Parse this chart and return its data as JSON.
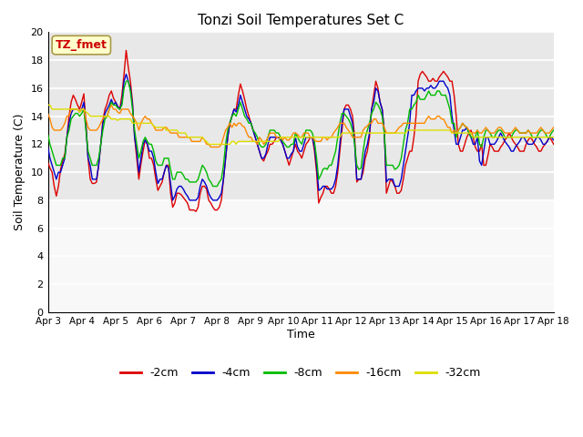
{
  "title": "Tonzi Soil Temperatures Set C",
  "xlabel": "Time",
  "ylabel": "Soil Temperature (C)",
  "annotation": "TZ_fmet",
  "annotation_color": "#cc0000",
  "annotation_bg": "#ffffcc",
  "annotation_border": "#aa9944",
  "ylim": [
    0,
    20
  ],
  "yticks": [
    0,
    2,
    4,
    6,
    8,
    10,
    12,
    14,
    16,
    18,
    20
  ],
  "xtick_labels": [
    "Apr 3",
    "Apr 4",
    "Apr 5",
    "Apr 6",
    "Apr 7",
    "Apr 8",
    "Apr 9",
    "Apr 10",
    "Apr 11",
    "Apr 12",
    "Apr 13",
    "Apr 14",
    "Apr 15",
    "Apr 16",
    "Apr 17",
    "Apr 18"
  ],
  "plot_bg_color": "#e8e8e8",
  "lower_bg_color": "#f8f8f8",
  "grid_color": "#ffffff",
  "series_colors": [
    "#dd0000",
    "#0000cc",
    "#00bb00",
    "#ff8800",
    "#dddd00"
  ],
  "series_labels": [
    "-2cm",
    "-4cm",
    "-8cm",
    "-16cm",
    "-32cm"
  ],
  "n_points": 240,
  "cm2": [
    10.7,
    10.3,
    10.0,
    9.0,
    8.3,
    9.0,
    10.2,
    10.8,
    11.3,
    12.5,
    14.0,
    15.0,
    15.5,
    15.2,
    14.8,
    14.5,
    15.0,
    15.6,
    13.5,
    11.0,
    9.5,
    9.2,
    9.2,
    9.3,
    10.5,
    12.0,
    13.7,
    14.5,
    14.9,
    15.5,
    15.8,
    15.3,
    15.0,
    14.7,
    14.5,
    15.5,
    17.0,
    18.7,
    17.5,
    16.5,
    15.0,
    12.5,
    11.0,
    9.5,
    10.6,
    11.5,
    12.3,
    12.0,
    11.0,
    11.0,
    10.5,
    9.5,
    8.7,
    9.0,
    9.3,
    10.0,
    10.5,
    10.5,
    8.5,
    7.5,
    7.8,
    8.5,
    8.5,
    8.4,
    8.2,
    8.0,
    7.8,
    7.3,
    7.3,
    7.3,
    7.2,
    7.5,
    8.5,
    9.0,
    9.0,
    8.8,
    8.0,
    7.8,
    7.5,
    7.3,
    7.3,
    7.5,
    8.0,
    9.5,
    11.0,
    12.5,
    13.5,
    14.0,
    14.5,
    14.5,
    15.5,
    16.3,
    15.8,
    15.2,
    14.5,
    14.0,
    13.5,
    13.0,
    12.5,
    12.0,
    11.5,
    11.0,
    10.8,
    11.2,
    11.5,
    12.0,
    12.0,
    12.2,
    12.5,
    12.5,
    12.3,
    12.0,
    11.5,
    11.0,
    10.5,
    11.0,
    11.5,
    12.0,
    11.5,
    11.3,
    11.0,
    11.5,
    12.0,
    12.2,
    12.5,
    12.5,
    11.5,
    10.0,
    7.8,
    8.2,
    8.5,
    9.0,
    9.0,
    8.8,
    8.5,
    8.5,
    9.0,
    10.0,
    11.5,
    13.0,
    14.5,
    14.8,
    14.8,
    14.5,
    14.0,
    12.5,
    9.3,
    9.5,
    9.5,
    10.0,
    11.0,
    11.5,
    12.5,
    14.5,
    15.5,
    16.5,
    16.0,
    15.0,
    14.5,
    13.0,
    8.5,
    9.0,
    9.5,
    9.3,
    9.0,
    8.5,
    8.5,
    8.7,
    9.5,
    10.5,
    11.0,
    11.5,
    11.5,
    12.5,
    14.0,
    16.5,
    17.0,
    17.2,
    17.0,
    16.8,
    16.5,
    16.5,
    16.7,
    16.5,
    16.5,
    16.8,
    17.0,
    17.2,
    17.0,
    16.8,
    16.5,
    16.5,
    15.5,
    14.0,
    12.0,
    11.5,
    11.5,
    12.0,
    12.5,
    12.8,
    13.0,
    12.5,
    11.8,
    11.5,
    11.5,
    12.0,
    10.5,
    10.5,
    11.2,
    12.0,
    11.8,
    11.5,
    11.5,
    11.5,
    11.8,
    12.0,
    12.3,
    12.5,
    12.8,
    12.5,
    12.2,
    12.0,
    11.8,
    11.5,
    11.5,
    11.5,
    12.0,
    12.3,
    12.5,
    12.3,
    12.0,
    11.8,
    11.5,
    11.5,
    11.8,
    12.0,
    12.2,
    12.5,
    12.3,
    12.0,
    11.8,
    11.5,
    12.0,
    12.3,
    12.5,
    12.3,
    12.2,
    12.0,
    12.0,
    12.2,
    12.5,
    12.5,
    12.3,
    12.0,
    11.8,
    11.5,
    11.5,
    11.8,
    12.0,
    12.3,
    12.5,
    12.3,
    12.0,
    11.8,
    11.8,
    12.0
  ],
  "cm4": [
    11.8,
    11.0,
    10.5,
    10.0,
    9.5,
    10.0,
    10.0,
    10.5,
    11.0,
    12.5,
    13.5,
    14.2,
    14.5,
    14.5,
    14.5,
    14.3,
    14.5,
    15.0,
    13.2,
    11.0,
    10.5,
    9.5,
    9.5,
    9.5,
    10.5,
    12.0,
    13.5,
    14.2,
    14.5,
    14.8,
    15.2,
    14.8,
    15.0,
    14.7,
    14.5,
    15.0,
    16.5,
    17.0,
    16.5,
    16.0,
    14.8,
    12.5,
    11.5,
    10.0,
    11.0,
    12.0,
    12.3,
    12.0,
    11.5,
    11.5,
    11.0,
    10.0,
    9.2,
    9.5,
    9.5,
    10.0,
    10.5,
    10.3,
    9.2,
    8.0,
    8.3,
    8.8,
    9.0,
    9.0,
    8.8,
    8.5,
    8.3,
    8.0,
    8.0,
    8.0,
    8.0,
    8.2,
    9.0,
    9.5,
    9.3,
    9.0,
    8.5,
    8.2,
    8.0,
    8.0,
    8.0,
    8.2,
    8.5,
    9.5,
    11.0,
    12.5,
    13.5,
    14.0,
    14.5,
    14.3,
    14.8,
    15.5,
    15.0,
    14.5,
    14.0,
    13.8,
    13.5,
    13.0,
    12.5,
    12.0,
    11.5,
    11.0,
    11.0,
    11.3,
    12.0,
    12.5,
    12.5,
    12.5,
    12.5,
    12.5,
    12.3,
    12.0,
    11.5,
    11.0,
    11.0,
    11.3,
    11.5,
    12.5,
    11.8,
    11.5,
    11.5,
    12.0,
    12.5,
    12.5,
    12.5,
    12.5,
    11.8,
    10.5,
    8.7,
    8.8,
    9.0,
    9.0,
    8.8,
    8.8,
    8.8,
    9.0,
    9.5,
    10.5,
    12.0,
    13.5,
    14.5,
    14.5,
    14.5,
    14.0,
    13.5,
    12.0,
    9.5,
    9.5,
    9.5,
    10.5,
    11.5,
    12.0,
    12.8,
    14.5,
    15.0,
    16.0,
    15.8,
    15.0,
    14.5,
    12.8,
    9.3,
    9.5,
    9.5,
    9.5,
    9.0,
    9.0,
    9.0,
    9.5,
    10.5,
    11.5,
    12.5,
    13.5,
    15.5,
    15.5,
    15.8,
    16.0,
    16.0,
    16.0,
    15.8,
    16.0,
    16.0,
    16.2,
    16.0,
    16.0,
    16.2,
    16.5,
    16.5,
    16.5,
    16.2,
    16.0,
    15.5,
    14.0,
    13.0,
    12.0,
    12.0,
    12.5,
    13.0,
    13.0,
    13.2,
    12.8,
    12.5,
    12.0,
    12.0,
    12.5,
    10.8,
    10.5,
    11.5,
    12.5,
    12.5,
    12.0,
    12.0,
    12.0,
    12.2,
    12.5,
    12.8,
    12.5,
    12.2,
    12.0,
    11.8,
    11.5,
    11.5,
    11.8,
    12.0,
    12.2,
    12.5,
    12.5,
    12.2,
    12.0,
    12.0,
    12.0,
    12.2,
    12.5,
    12.5,
    12.3,
    12.0,
    12.0,
    12.2,
    12.5,
    12.5,
    12.3,
    12.0,
    12.0,
    12.2,
    12.5,
    12.5,
    12.3,
    12.2,
    12.0,
    12.2,
    12.5,
    12.5,
    12.3,
    12.2,
    12.0,
    12.0,
    12.2,
    12.0,
    12.2,
    12.5,
    12.5,
    12.3,
    12.0,
    12.0,
    12.2,
    12.2,
    12.5
  ],
  "cm8": [
    12.7,
    12.0,
    11.5,
    11.0,
    10.5,
    10.5,
    10.5,
    11.0,
    11.0,
    12.5,
    13.0,
    13.8,
    14.0,
    14.2,
    14.2,
    14.0,
    14.2,
    14.5,
    13.0,
    11.5,
    11.0,
    10.5,
    10.5,
    10.5,
    11.0,
    12.0,
    13.0,
    13.8,
    14.0,
    14.5,
    15.0,
    14.8,
    14.8,
    14.6,
    14.5,
    14.8,
    16.0,
    16.5,
    16.5,
    15.8,
    14.5,
    13.0,
    12.0,
    11.0,
    11.5,
    12.2,
    12.5,
    12.2,
    12.0,
    12.0,
    11.5,
    10.8,
    10.5,
    10.5,
    10.5,
    11.0,
    11.0,
    11.0,
    10.2,
    9.5,
    9.5,
    10.0,
    10.0,
    10.0,
    9.8,
    9.5,
    9.5,
    9.3,
    9.3,
    9.3,
    9.3,
    9.5,
    10.0,
    10.5,
    10.3,
    10.0,
    9.5,
    9.3,
    9.0,
    9.0,
    9.0,
    9.3,
    9.5,
    10.5,
    12.0,
    13.0,
    13.5,
    14.0,
    14.2,
    14.0,
    14.5,
    15.0,
    14.5,
    14.0,
    13.8,
    13.5,
    13.5,
    13.0,
    12.8,
    12.5,
    12.0,
    11.8,
    11.8,
    12.0,
    12.5,
    13.0,
    13.0,
    13.0,
    12.8,
    12.8,
    12.5,
    12.2,
    12.0,
    11.8,
    11.8,
    12.0,
    12.0,
    12.8,
    12.5,
    12.2,
    12.0,
    12.5,
    13.0,
    13.0,
    13.0,
    12.8,
    12.2,
    11.0,
    9.5,
    9.8,
    10.2,
    10.3,
    10.2,
    10.5,
    10.5,
    11.0,
    11.5,
    12.5,
    13.5,
    14.2,
    14.2,
    14.0,
    13.8,
    13.5,
    13.0,
    12.0,
    10.5,
    10.2,
    10.3,
    11.5,
    12.5,
    13.0,
    13.5,
    14.2,
    14.5,
    15.0,
    14.8,
    14.5,
    14.0,
    12.8,
    10.5,
    10.5,
    10.5,
    10.5,
    10.2,
    10.3,
    10.5,
    11.0,
    12.0,
    13.0,
    13.5,
    14.5,
    14.5,
    14.8,
    15.0,
    15.5,
    15.2,
    15.2,
    15.2,
    15.5,
    15.8,
    15.5,
    15.5,
    15.5,
    15.8,
    15.8,
    15.5,
    15.5,
    15.5,
    15.0,
    14.5,
    13.5,
    13.5,
    12.5,
    13.0,
    13.2,
    13.5,
    13.3,
    13.2,
    12.8,
    12.5,
    12.5,
    12.5,
    13.0,
    12.0,
    11.8,
    12.5,
    13.0,
    13.0,
    12.8,
    12.5,
    12.5,
    12.8,
    13.0,
    13.0,
    12.8,
    12.5,
    12.5,
    12.5,
    12.5,
    12.8,
    13.0,
    13.0,
    12.8,
    12.8,
    12.8,
    12.8,
    13.0,
    12.8,
    12.5,
    12.5,
    12.5,
    12.8,
    13.0,
    13.0,
    12.8,
    12.5,
    12.5,
    12.8,
    13.0,
    12.8,
    12.5,
    12.8,
    13.0,
    12.8,
    12.5,
    12.5,
    12.5,
    12.8,
    13.0,
    12.8,
    12.5,
    12.5,
    12.5,
    12.5,
    12.8,
    12.5,
    12.8,
    13.0,
    12.8,
    12.5,
    12.5,
    12.5,
    12.8,
    12.8,
    13.0
  ],
  "cm16": [
    14.2,
    13.8,
    13.2,
    13.0,
    13.0,
    13.0,
    13.0,
    13.2,
    13.5,
    14.0,
    14.0,
    14.5,
    14.5,
    14.5,
    14.5,
    14.3,
    14.5,
    14.5,
    13.8,
    13.2,
    13.0,
    13.0,
    13.0,
    13.0,
    13.2,
    13.5,
    13.8,
    14.0,
    14.0,
    14.5,
    14.8,
    14.5,
    14.5,
    14.3,
    14.2,
    14.5,
    14.5,
    14.5,
    14.5,
    14.2,
    14.0,
    13.8,
    13.5,
    13.0,
    13.5,
    13.8,
    14.0,
    13.8,
    13.8,
    13.5,
    13.3,
    13.0,
    13.0,
    13.0,
    13.0,
    13.2,
    13.2,
    13.0,
    12.8,
    12.8,
    12.8,
    12.8,
    12.5,
    12.5,
    12.5,
    12.5,
    12.5,
    12.5,
    12.2,
    12.2,
    12.2,
    12.2,
    12.2,
    12.5,
    12.3,
    12.0,
    12.0,
    11.8,
    11.8,
    11.8,
    11.8,
    11.8,
    12.0,
    12.5,
    13.0,
    13.2,
    13.5,
    13.2,
    13.5,
    13.3,
    13.5,
    13.5,
    13.3,
    13.2,
    12.8,
    12.5,
    12.5,
    12.2,
    12.2,
    12.0,
    12.5,
    12.3,
    12.0,
    12.2,
    12.5,
    12.8,
    12.8,
    12.8,
    12.5,
    12.5,
    12.5,
    12.3,
    12.5,
    12.3,
    12.3,
    12.5,
    12.8,
    12.8,
    12.7,
    12.5,
    12.5,
    12.8,
    12.8,
    12.8,
    12.5,
    12.5,
    12.3,
    12.2,
    12.2,
    12.2,
    12.5,
    12.5,
    12.3,
    12.5,
    12.5,
    12.8,
    13.0,
    13.2,
    13.5,
    13.5,
    13.5,
    13.2,
    13.0,
    12.8,
    12.5,
    12.5,
    12.5,
    12.5,
    12.5,
    13.0,
    13.2,
    13.3,
    13.5,
    13.5,
    13.8,
    13.8,
    13.5,
    13.5,
    13.5,
    13.2,
    12.8,
    12.8,
    12.8,
    12.8,
    12.8,
    13.0,
    13.2,
    13.3,
    13.5,
    13.5,
    13.5,
    13.5,
    13.5,
    13.5,
    13.5,
    13.5,
    13.5,
    13.5,
    13.5,
    13.8,
    14.0,
    13.8,
    13.8,
    13.8,
    14.0,
    14.0,
    13.8,
    13.8,
    13.5,
    13.2,
    13.2,
    12.8,
    13.0,
    12.8,
    13.0,
    13.2,
    13.5,
    13.3,
    13.2,
    13.0,
    12.8,
    12.8,
    12.8,
    13.0,
    12.8,
    12.8,
    13.0,
    13.2,
    13.0,
    12.8,
    12.8,
    12.8,
    13.0,
    13.2,
    13.2,
    13.0,
    12.8,
    12.8,
    12.8,
    12.8,
    13.0,
    13.2,
    13.0,
    12.8,
    12.8,
    12.8,
    12.8,
    13.0,
    12.8,
    12.8,
    12.8,
    12.8,
    13.0,
    13.2,
    13.0,
    12.8,
    12.8,
    12.8,
    13.0,
    13.2,
    13.0,
    12.8,
    12.8,
    13.0,
    13.2,
    13.0,
    12.8,
    12.8,
    13.0,
    13.2,
    13.0,
    12.8,
    12.8,
    12.8,
    12.8,
    13.0,
    12.8,
    12.8,
    13.0,
    13.0,
    12.8,
    12.8,
    12.8,
    12.8,
    12.8,
    13.0
  ],
  "cm32": [
    14.8,
    14.8,
    14.5,
    14.5,
    14.5,
    14.5,
    14.5,
    14.5,
    14.5,
    14.5,
    14.5,
    14.5,
    14.5,
    14.5,
    14.5,
    14.3,
    14.5,
    14.5,
    14.3,
    14.2,
    14.0,
    14.0,
    14.0,
    14.0,
    14.0,
    14.0,
    14.0,
    14.0,
    14.0,
    14.0,
    13.8,
    13.8,
    13.8,
    13.7,
    13.8,
    13.8,
    13.8,
    13.8,
    13.8,
    13.8,
    13.5,
    13.5,
    13.5,
    13.5,
    13.5,
    13.5,
    13.5,
    13.5,
    13.5,
    13.5,
    13.3,
    13.2,
    13.2,
    13.2,
    13.2,
    13.2,
    13.0,
    13.0,
    13.0,
    13.0,
    13.0,
    13.0,
    12.8,
    12.8,
    12.8,
    12.8,
    12.5,
    12.5,
    12.5,
    12.5,
    12.5,
    12.5,
    12.5,
    12.5,
    12.3,
    12.2,
    12.0,
    12.0,
    12.0,
    12.0,
    12.0,
    12.0,
    12.0,
    12.0,
    12.0,
    12.0,
    12.0,
    12.2,
    12.2,
    12.0,
    12.2,
    12.2,
    12.2,
    12.2,
    12.2,
    12.2,
    12.2,
    12.2,
    12.2,
    12.2,
    12.2,
    12.2,
    12.2,
    12.2,
    12.2,
    12.2,
    12.2,
    12.2,
    12.2,
    12.2,
    12.5,
    12.5,
    12.5,
    12.5,
    12.5,
    12.5,
    12.5,
    12.5,
    12.5,
    12.5,
    12.5,
    12.5,
    12.5,
    12.5,
    12.5,
    12.5,
    12.5,
    12.5,
    12.5,
    12.5,
    12.5,
    12.5,
    12.5,
    12.5,
    12.5,
    12.5,
    12.5,
    12.5,
    12.5,
    12.8,
    12.8,
    12.8,
    12.8,
    12.8,
    12.8,
    12.8,
    12.8,
    12.8,
    12.8,
    12.8,
    12.8,
    12.8,
    12.8,
    12.8,
    12.8,
    12.8,
    12.8,
    12.8,
    12.8,
    12.8,
    12.8,
    12.8,
    12.8,
    12.8,
    12.8,
    12.8,
    12.8,
    12.8,
    12.8,
    12.8,
    13.0,
    13.0,
    13.0,
    13.0,
    13.0,
    13.0,
    13.0,
    13.0,
    13.0,
    13.0,
    13.0,
    13.0,
    13.0,
    13.0,
    13.0,
    13.0,
    13.0,
    13.0,
    13.0,
    13.0,
    13.0,
    12.8,
    12.8,
    12.8,
    12.8,
    12.8,
    12.8,
    12.8,
    12.8,
    12.8,
    12.8,
    12.5,
    12.5,
    12.5,
    12.5,
    12.5,
    12.5,
    12.5,
    12.5,
    12.5,
    12.5,
    12.5,
    12.5,
    12.5,
    12.5,
    12.5,
    12.5,
    12.5,
    12.5,
    12.5,
    12.5,
    12.5,
    12.5,
    12.5,
    12.5,
    12.5,
    12.5,
    12.5,
    12.5,
    12.5,
    12.5,
    12.5,
    12.5,
    12.5,
    12.5,
    12.5,
    12.5,
    12.5,
    12.5,
    12.5,
    12.5,
    12.5,
    12.5,
    12.5,
    12.5,
    12.5,
    12.5,
    12.5,
    12.5,
    12.5,
    12.5,
    12.5,
    12.5,
    12.5,
    12.5,
    12.5,
    12.5,
    12.5,
    12.5,
    12.5,
    12.5,
    12.5
  ]
}
